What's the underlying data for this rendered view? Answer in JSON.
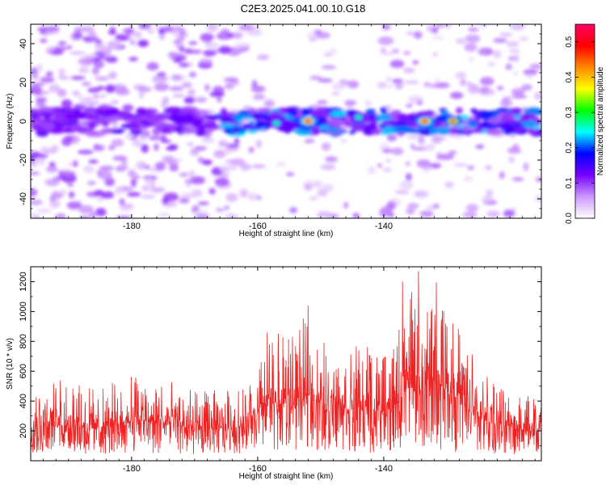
{
  "title": "C2E3.2025.041.00.10.G18",
  "chart_data": [
    {
      "type": "heatmap",
      "xlabel": "Height of straight line (km)",
      "ylabel": "Frequency (Hz)",
      "xlim": [
        -196,
        -115
      ],
      "ylim": [
        -50,
        50
      ],
      "xticks": [
        -180,
        -160,
        -140
      ],
      "xtick_labels": [
        "-180",
        "-160",
        "-140"
      ],
      "yticks": [
        -40,
        -20,
        0,
        20,
        40
      ],
      "ytick_labels": [
        "-40",
        "-20",
        "0",
        "20",
        "40"
      ],
      "colorbar": {
        "label": "Normalized spectral amplitude",
        "range": [
          0,
          0.55
        ],
        "ticks": [
          0,
          0.1,
          0.2,
          0.3,
          0.4,
          0.5
        ],
        "tick_labels": [
          "0.0",
          "0.1",
          "0.2",
          "0.3",
          "0.4",
          "0.5"
        ],
        "colors": [
          "#ffffff",
          "#cc99ff",
          "#7700ff",
          "#0000ff",
          "#00ffff",
          "#00ff00",
          "#ffff00",
          "#ff8800",
          "#ff0000",
          "#ff0066"
        ]
      },
      "band": {
        "frequency_center": 0,
        "frequency_halfwidth": 6
      },
      "peaks": [
        {
          "x": -152,
          "y": 0,
          "value": 0.55
        },
        {
          "x": -133.5,
          "y": 0,
          "value": 0.55
        },
        {
          "x": -129,
          "y": 0,
          "value": 0.5
        },
        {
          "x": -157,
          "y": -1,
          "value": 0.3
        },
        {
          "x": -144,
          "y": 2,
          "value": 0.3
        }
      ],
      "grid": false
    },
    {
      "type": "line",
      "xlabel": "Height of straight line (km)",
      "ylabel": "SNR (10 * v/v)",
      "xlim": [
        -196,
        -115
      ],
      "ylim": [
        0,
        1300
      ],
      "xticks": [
        -180,
        -160,
        -140
      ],
      "xtick_labels": [
        "-180",
        "-160",
        "-140"
      ],
      "yticks": [
        200,
        400,
        600,
        800,
        1000,
        1200
      ],
      "ytick_labels": [
        "200",
        "400",
        "600",
        "800",
        "1000",
        "1200"
      ],
      "color": "#ee2222",
      "envelope": {
        "x": [
          -196,
          -190,
          -185,
          -180,
          -175,
          -170,
          -165,
          -162,
          -160,
          -158,
          -156,
          -154,
          -152,
          -150,
          -148,
          -146,
          -144,
          -142,
          -140,
          -138,
          -136,
          -134,
          -132,
          -130,
          -128,
          -125,
          -120,
          -115
        ],
        "low": [
          50,
          40,
          40,
          50,
          45,
          40,
          45,
          50,
          80,
          70,
          70,
          60,
          90,
          60,
          80,
          60,
          50,
          50,
          60,
          60,
          90,
          80,
          60,
          60,
          60,
          50,
          40,
          40
        ],
        "high": [
          500,
          560,
          480,
          600,
          560,
          470,
          480,
          500,
          620,
          860,
          850,
          830,
          1030,
          730,
          790,
          800,
          790,
          830,
          690,
          850,
          1200,
          950,
          1270,
          1150,
          900,
          650,
          500,
          450
        ]
      },
      "spikes": [
        {
          "x": -158.5,
          "y": 860
        },
        {
          "x": -154.5,
          "y": 830
        },
        {
          "x": -152.0,
          "y": 1040
        },
        {
          "x": -149.5,
          "y": 790
        },
        {
          "x": -137.0,
          "y": 1200
        },
        {
          "x": -134.5,
          "y": 1270
        },
        {
          "x": -132.5,
          "y": 1000
        },
        {
          "x": -130.0,
          "y": 900
        }
      ],
      "grid": false
    }
  ]
}
